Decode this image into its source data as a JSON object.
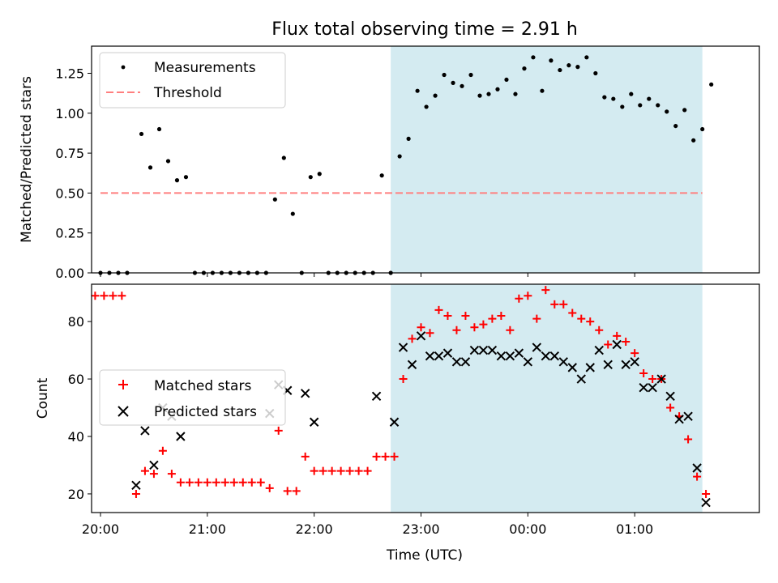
{
  "figure": {
    "title": "Flux total observing time = 2.91 h",
    "xlabel": "Time (UTC)",
    "x_ticks": [
      "20:00",
      "21:00",
      "22:00",
      "23:00",
      "00:00",
      "01:00"
    ],
    "highlight_color": "#d4ebf1"
  },
  "chart_data": [
    {
      "type": "scatter",
      "ylabel": "Matched/Predicted stars",
      "xlim": [
        "19:55",
        "02:10"
      ],
      "ylim": [
        0,
        1.42
      ],
      "y_ticks": [
        "0.00",
        "0.25",
        "0.50",
        "0.75",
        "1.00",
        "1.25"
      ],
      "highlight_range": [
        "22:43",
        "01:38"
      ],
      "legend": {
        "placement": "top-left",
        "entries": [
          "Measurements",
          "Threshold"
        ]
      },
      "threshold": {
        "name": "Threshold",
        "value": 0.5,
        "x_range": [
          "20:00",
          "01:38"
        ],
        "color": "#ff7f7f"
      },
      "series": [
        {
          "name": "Measurements",
          "color": "#000000",
          "points": [
            [
              "20:00",
              0
            ],
            [
              "20:05",
              0
            ],
            [
              "20:10",
              0
            ],
            [
              "20:15",
              0
            ],
            [
              "20:23",
              0.87
            ],
            [
              "20:28",
              0.66
            ],
            [
              "20:33",
              0.9
            ],
            [
              "20:38",
              0.7
            ],
            [
              "20:43",
              0.58
            ],
            [
              "20:48",
              0.6
            ],
            [
              "20:53",
              0
            ],
            [
              "20:58",
              0
            ],
            [
              "21:03",
              0
            ],
            [
              "21:08",
              0
            ],
            [
              "21:13",
              0
            ],
            [
              "21:18",
              0
            ],
            [
              "21:23",
              0
            ],
            [
              "21:28",
              0
            ],
            [
              "21:33",
              0
            ],
            [
              "21:38",
              0.46
            ],
            [
              "21:43",
              0.72
            ],
            [
              "21:48",
              0.37
            ],
            [
              "21:53",
              0
            ],
            [
              "21:58",
              0.6
            ],
            [
              "22:03",
              0.62
            ],
            [
              "22:08",
              0
            ],
            [
              "22:13",
              0
            ],
            [
              "22:18",
              0
            ],
            [
              "22:23",
              0
            ],
            [
              "22:28",
              0
            ],
            [
              "22:33",
              0
            ],
            [
              "22:38",
              0.61
            ],
            [
              "22:43",
              0
            ],
            [
              "22:48",
              0.73
            ],
            [
              "22:53",
              0.84
            ],
            [
              "22:58",
              1.14
            ],
            [
              "23:03",
              1.04
            ],
            [
              "23:08",
              1.11
            ],
            [
              "23:13",
              1.24
            ],
            [
              "23:18",
              1.19
            ],
            [
              "23:23",
              1.17
            ],
            [
              "23:28",
              1.24
            ],
            [
              "23:33",
              1.11
            ],
            [
              "23:38",
              1.12
            ],
            [
              "23:43",
              1.15
            ],
            [
              "23:48",
              1.21
            ],
            [
              "23:53",
              1.12
            ],
            [
              "23:58",
              1.28
            ],
            [
              "00:03",
              1.35
            ],
            [
              "00:08",
              1.14
            ],
            [
              "00:13",
              1.33
            ],
            [
              "00:18",
              1.27
            ],
            [
              "00:23",
              1.3
            ],
            [
              "00:28",
              1.29
            ],
            [
              "00:33",
              1.35
            ],
            [
              "00:38",
              1.25
            ],
            [
              "00:43",
              1.1
            ],
            [
              "00:48",
              1.09
            ],
            [
              "00:53",
              1.04
            ],
            [
              "00:58",
              1.12
            ],
            [
              "01:03",
              1.05
            ],
            [
              "01:08",
              1.09
            ],
            [
              "01:13",
              1.05
            ],
            [
              "01:18",
              1.01
            ],
            [
              "01:23",
              0.92
            ],
            [
              "01:28",
              1.02
            ],
            [
              "01:33",
              0.83
            ],
            [
              "01:38",
              0.9
            ],
            [
              "01:43",
              1.18
            ]
          ]
        }
      ]
    },
    {
      "type": "scatter",
      "ylabel": "Count",
      "xlim": [
        "19:55",
        "02:10"
      ],
      "ylim": [
        13.5,
        93
      ],
      "y_ticks": [
        "20",
        "40",
        "60",
        "80"
      ],
      "highlight_range": [
        "22:43",
        "01:38"
      ],
      "legend": {
        "placement": "center-left",
        "entries": [
          "Matched stars",
          "Predicted stars"
        ]
      },
      "series": [
        {
          "name": "Matched stars",
          "marker": "plus",
          "color": "#ff0000",
          "points": [
            [
              "19:57",
              89
            ],
            [
              "20:02",
              89
            ],
            [
              "20:07",
              89
            ],
            [
              "20:12",
              89
            ],
            [
              "20:20",
              20
            ],
            [
              "20:25",
              28
            ],
            [
              "20:30",
              27
            ],
            [
              "20:35",
              35
            ],
            [
              "20:40",
              27
            ],
            [
              "20:45",
              24
            ],
            [
              "20:50",
              24
            ],
            [
              "20:55",
              24
            ],
            [
              "21:00",
              24
            ],
            [
              "21:05",
              24
            ],
            [
              "21:10",
              24
            ],
            [
              "21:15",
              24
            ],
            [
              "21:20",
              24
            ],
            [
              "21:25",
              24
            ],
            [
              "21:30",
              24
            ],
            [
              "21:35",
              22
            ],
            [
              "21:40",
              42
            ],
            [
              "21:45",
              21
            ],
            [
              "21:50",
              21
            ],
            [
              "21:55",
              33
            ],
            [
              "22:00",
              28
            ],
            [
              "22:05",
              28
            ],
            [
              "22:10",
              28
            ],
            [
              "22:15",
              28
            ],
            [
              "22:20",
              28
            ],
            [
              "22:25",
              28
            ],
            [
              "22:30",
              28
            ],
            [
              "22:35",
              33
            ],
            [
              "22:40",
              33
            ],
            [
              "22:45",
              33
            ],
            [
              "22:50",
              60
            ],
            [
              "22:55",
              74
            ],
            [
              "23:00",
              78
            ],
            [
              "23:05",
              76
            ],
            [
              "23:10",
              84
            ],
            [
              "23:15",
              82
            ],
            [
              "23:20",
              77
            ],
            [
              "23:25",
              82
            ],
            [
              "23:30",
              78
            ],
            [
              "23:35",
              79
            ],
            [
              "23:40",
              81
            ],
            [
              "23:45",
              82
            ],
            [
              "23:50",
              77
            ],
            [
              "23:55",
              88
            ],
            [
              "00:00",
              89
            ],
            [
              "00:05",
              81
            ],
            [
              "00:10",
              91
            ],
            [
              "00:15",
              86
            ],
            [
              "00:20",
              86
            ],
            [
              "00:25",
              83
            ],
            [
              "00:30",
              81
            ],
            [
              "00:35",
              80
            ],
            [
              "00:40",
              77
            ],
            [
              "00:45",
              72
            ],
            [
              "00:50",
              75
            ],
            [
              "00:55",
              73
            ],
            [
              "01:00",
              69
            ],
            [
              "01:05",
              62
            ],
            [
              "01:10",
              60
            ],
            [
              "01:15",
              60
            ],
            [
              "01:20",
              50
            ],
            [
              "01:25",
              47
            ],
            [
              "01:30",
              39
            ],
            [
              "01:35",
              26
            ],
            [
              "01:40",
              20
            ]
          ]
        },
        {
          "name": "Predicted stars",
          "marker": "x",
          "color": "#000000",
          "points": [
            [
              "20:20",
              23
            ],
            [
              "20:25",
              42
            ],
            [
              "20:30",
              30
            ],
            [
              "20:35",
              50
            ],
            [
              "20:40",
              47
            ],
            [
              "20:45",
              40
            ],
            [
              "21:35",
              48
            ],
            [
              "21:40",
              58
            ],
            [
              "21:45",
              56
            ],
            [
              "21:55",
              55
            ],
            [
              "22:00",
              45
            ],
            [
              "22:35",
              54
            ],
            [
              "22:45",
              45
            ],
            [
              "22:50",
              71
            ],
            [
              "22:55",
              65
            ],
            [
              "23:00",
              75
            ],
            [
              "23:05",
              68
            ],
            [
              "23:10",
              68
            ],
            [
              "23:15",
              69
            ],
            [
              "23:20",
              66
            ],
            [
              "23:25",
              66
            ],
            [
              "23:30",
              70
            ],
            [
              "23:35",
              70
            ],
            [
              "23:40",
              70
            ],
            [
              "23:45",
              68
            ],
            [
              "23:50",
              68
            ],
            [
              "23:55",
              69
            ],
            [
              "00:00",
              66
            ],
            [
              "00:05",
              71
            ],
            [
              "00:10",
              68
            ],
            [
              "00:15",
              68
            ],
            [
              "00:20",
              66
            ],
            [
              "00:25",
              64
            ],
            [
              "00:30",
              60
            ],
            [
              "00:35",
              64
            ],
            [
              "00:40",
              70
            ],
            [
              "00:45",
              65
            ],
            [
              "00:50",
              72
            ],
            [
              "00:55",
              65
            ],
            [
              "01:00",
              66
            ],
            [
              "01:05",
              57
            ],
            [
              "01:10",
              57
            ],
            [
              "01:15",
              60
            ],
            [
              "01:20",
              54
            ],
            [
              "01:25",
              46
            ],
            [
              "01:30",
              47
            ],
            [
              "01:35",
              29
            ],
            [
              "01:40",
              17
            ]
          ]
        }
      ]
    }
  ]
}
